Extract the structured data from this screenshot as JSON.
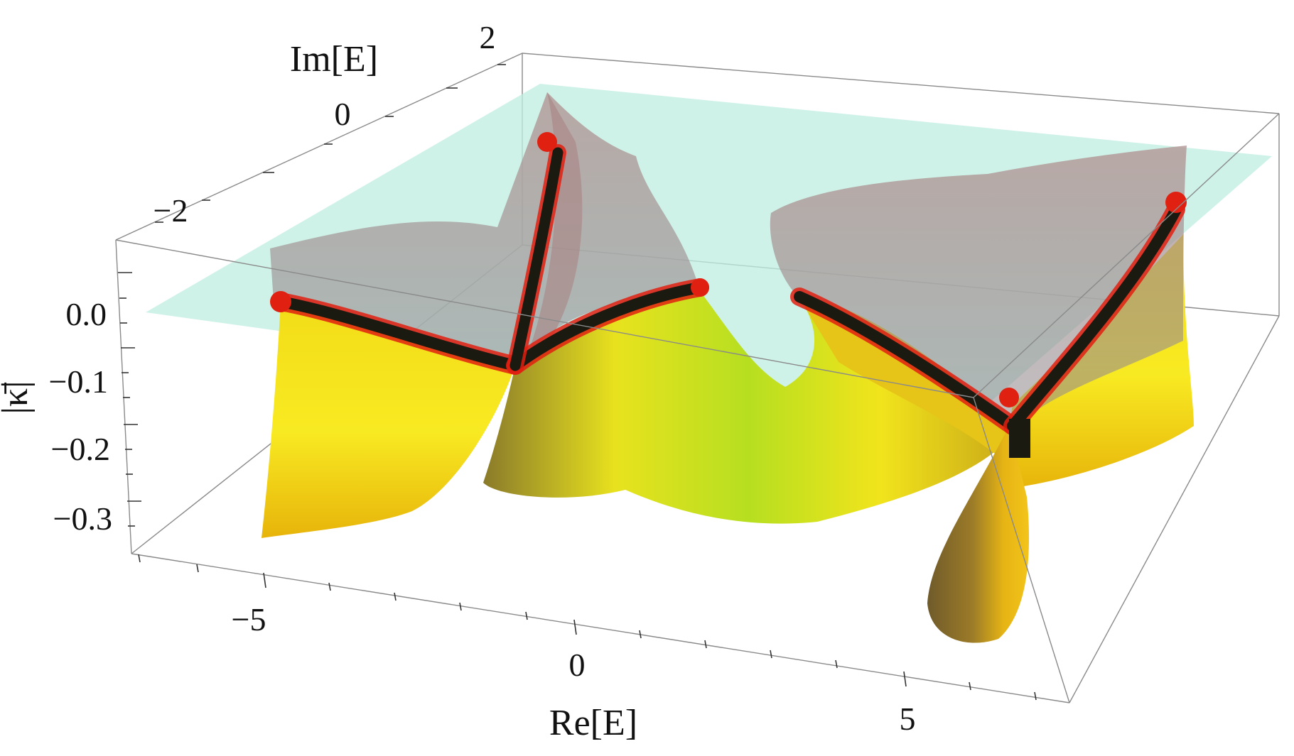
{
  "chart_data": {
    "type": "surface3d",
    "xlabel": "Re[E]",
    "ylabel": "Im[E]",
    "zlabel": "|κ̄|",
    "x_ticks": [
      "−5",
      "0",
      "5"
    ],
    "y_ticks": [
      "2",
      "0",
      "−2"
    ],
    "z_ticks": [
      "0.0",
      "−0.1",
      "−0.2",
      "−0.3"
    ],
    "xlim": [
      -7,
      7
    ],
    "ylim": [
      -3,
      3
    ],
    "zlim": [
      -0.35,
      0.03
    ],
    "grid": false,
    "legend": "none",
    "colors": {
      "surface_low": "#e0a000",
      "surface_mid": "#f5e21a",
      "surface_green": "#b7e01f",
      "upper_sheet": "#b89494",
      "plane": "#bfeee0",
      "exceptional_points": "#e02010",
      "branch_curves": "#1a1a10"
    }
  }
}
